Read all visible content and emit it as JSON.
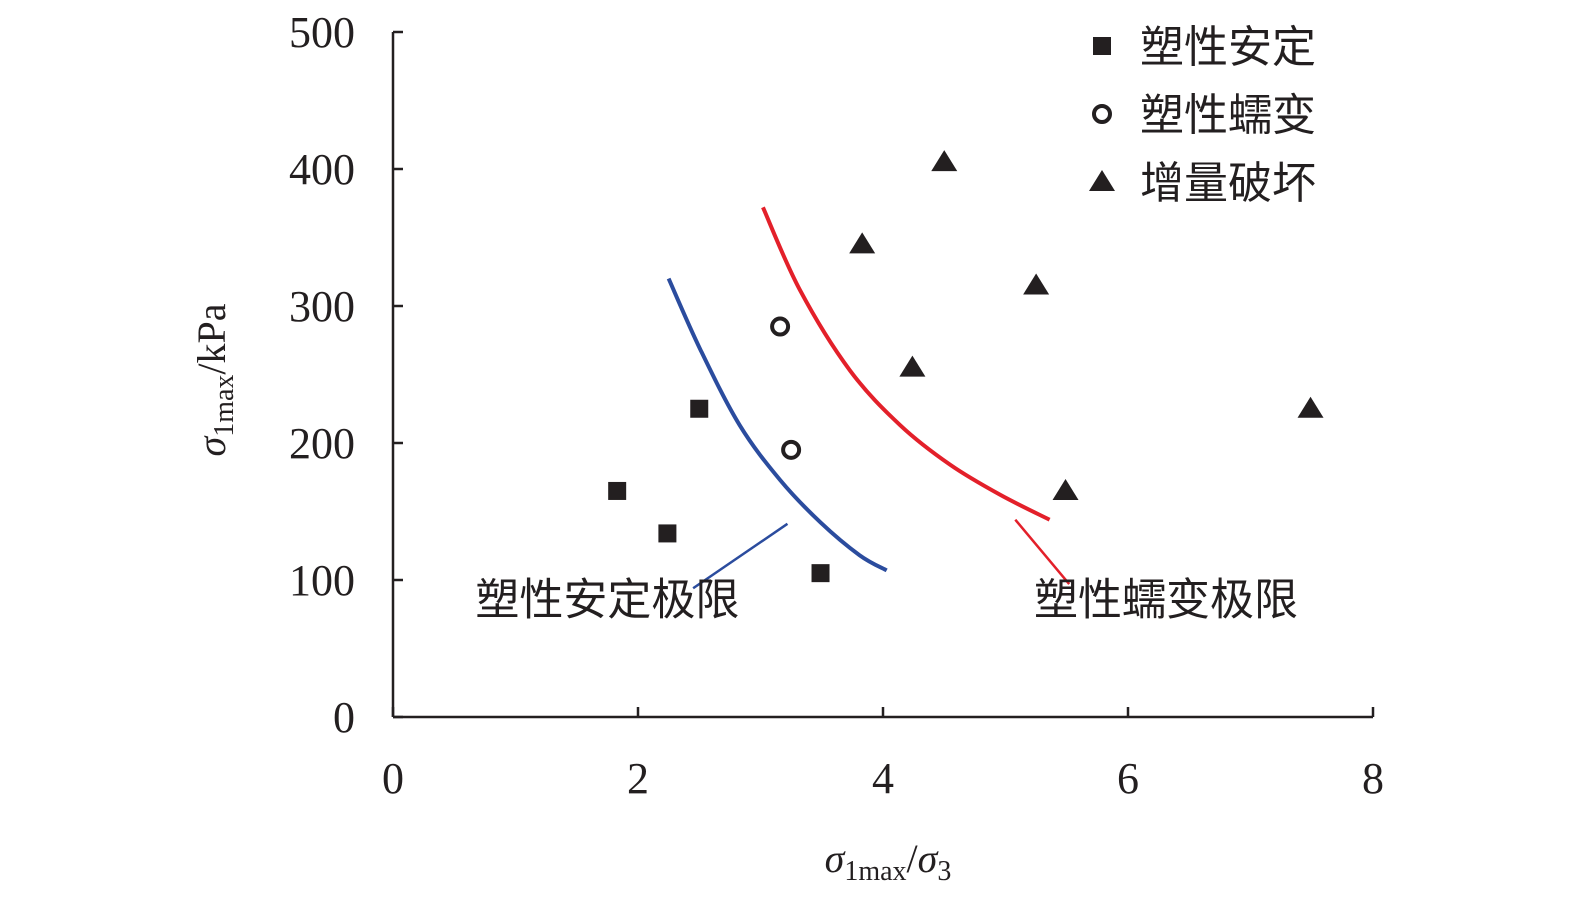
{
  "chart_data": {
    "type": "scatter",
    "title": "",
    "xlabel": {
      "sym": "σ",
      "sub": "1max",
      "slash": "/",
      "sym2": "σ",
      "sub2": "3"
    },
    "ylabel": {
      "sym": "σ",
      "sub": "1max",
      "rest": "/kPa"
    },
    "xlim": [
      0,
      8
    ],
    "ylim": [
      0,
      500
    ],
    "xticks": [
      "0",
      "2",
      "4",
      "6",
      "8"
    ],
    "yticks": [
      "0",
      "100",
      "200",
      "300",
      "400",
      "500"
    ],
    "grid": false,
    "legend_position": "top-right",
    "series": [
      {
        "name": "塑性安定",
        "marker": "square",
        "color": "#231f20",
        "points": [
          [
            1.83,
            165
          ],
          [
            2.24,
            134
          ],
          [
            2.5,
            225
          ],
          [
            3.49,
            105
          ]
        ]
      },
      {
        "name": "塑性蠕变",
        "marker": "circle-open",
        "color": "#231f20",
        "points": [
          [
            3.16,
            285
          ],
          [
            3.25,
            195
          ]
        ]
      },
      {
        "name": "增量破坏",
        "marker": "triangle",
        "color": "#231f20",
        "points": [
          [
            4.5,
            405
          ],
          [
            3.83,
            345
          ],
          [
            5.25,
            315
          ],
          [
            4.24,
            255
          ],
          [
            5.49,
            165
          ],
          [
            7.49,
            225
          ]
        ]
      }
    ],
    "curves": [
      {
        "name": "塑性安定极限",
        "color": "#2b4c9e",
        "points": [
          [
            2.25,
            320
          ],
          [
            2.51,
            268
          ],
          [
            2.83,
            213
          ],
          [
            3.16,
            173
          ],
          [
            3.49,
            142
          ],
          [
            3.81,
            118
          ],
          [
            4.03,
            107
          ]
        ],
        "leader": [
          [
            3.22,
            141
          ],
          [
            2.45,
            94
          ]
        ],
        "label_at": [
          1.75,
          75
        ]
      },
      {
        "name": "塑性蠕变极限",
        "color": "#e3202a",
        "points": [
          [
            3.02,
            372
          ],
          [
            3.32,
            312
          ],
          [
            3.73,
            253
          ],
          [
            4.14,
            213
          ],
          [
            4.55,
            184
          ],
          [
            4.96,
            162
          ],
          [
            5.36,
            144
          ]
        ],
        "leader": [
          [
            5.08,
            144
          ],
          [
            5.52,
            97
          ]
        ],
        "label_at": [
          6.31,
          75
        ]
      }
    ]
  }
}
